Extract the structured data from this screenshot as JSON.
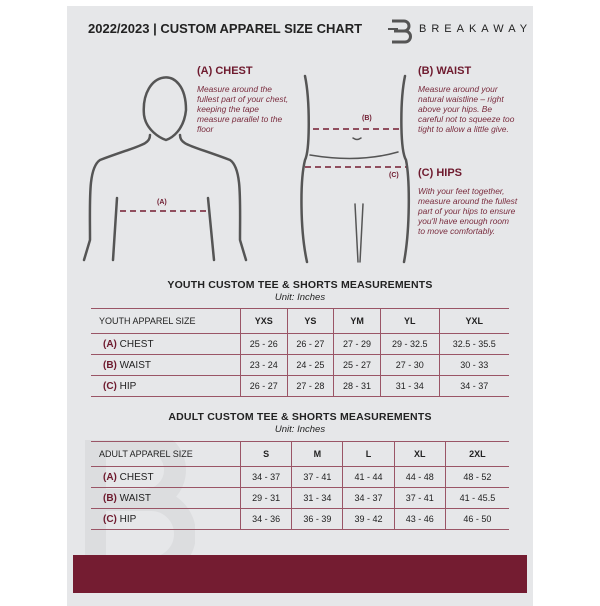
{
  "header": {
    "title": "2022/2023  |  CUSTOM APPAREL SIZE CHART",
    "brand": "BREAKAWAY"
  },
  "guide": {
    "chest": {
      "heading": "(A) CHEST",
      "text": "Measure around the fullest part of your chest, keeping the tape measure parallel to the floor",
      "marker": "(A)"
    },
    "waist": {
      "heading": "(B) WAIST",
      "text": "Measure around your natural waistline – right above your hips. Be careful not to squeeze too tight to allow a little give.",
      "marker": "(B)"
    },
    "hips": {
      "heading": "(C) HIPS",
      "text": "With your feet together, measure around the fullest part of your hips to ensure you'll have enough room to move comfortably.",
      "marker": "(C)"
    }
  },
  "youth": {
    "title": "YOUTH CUSTOM TEE & SHORTS MEASUREMENTS",
    "unit": "Unit: Inches",
    "header": [
      "YOUTH APPAREL SIZE",
      "YXS",
      "YS",
      "YM",
      "YL",
      "YXL"
    ],
    "rows": [
      {
        "letter": "(A)",
        "label": "CHEST",
        "values": [
          "25 - 26",
          "26 - 27",
          "27 - 29",
          "29 - 32.5",
          "32.5 - 35.5"
        ]
      },
      {
        "letter": "(B)",
        "label": "WAIST",
        "values": [
          "23 - 24",
          "24 - 25",
          "25 - 27",
          "27 - 30",
          "30 - 33"
        ]
      },
      {
        "letter": "(C)",
        "label": "HIP",
        "values": [
          "26 - 27",
          "27 - 28",
          "28 - 31",
          "31 - 34",
          "34 - 37"
        ]
      }
    ]
  },
  "adult": {
    "title": "ADULT CUSTOM TEE & SHORTS MEASUREMENTS",
    "unit": "Unit: Inches",
    "header": [
      "ADULT APPAREL SIZE",
      "S",
      "M",
      "L",
      "XL",
      "2XL"
    ],
    "rows": [
      {
        "letter": "(A)",
        "label": "CHEST",
        "values": [
          "34 - 37",
          "37 - 41",
          "41 - 44",
          "44 - 48",
          "48 - 52"
        ]
      },
      {
        "letter": "(B)",
        "label": "WAIST",
        "values": [
          "29 - 31",
          "31 - 34",
          "34 - 37",
          "37 - 41",
          "41 - 45.5"
        ]
      },
      {
        "letter": "(C)",
        "label": "HIP",
        "values": [
          "34 - 36",
          "36 - 39",
          "39 - 42",
          "43 - 46",
          "46 - 50"
        ]
      }
    ]
  },
  "colors": {
    "accent": "#741c31",
    "background": "#e6e7e9"
  }
}
